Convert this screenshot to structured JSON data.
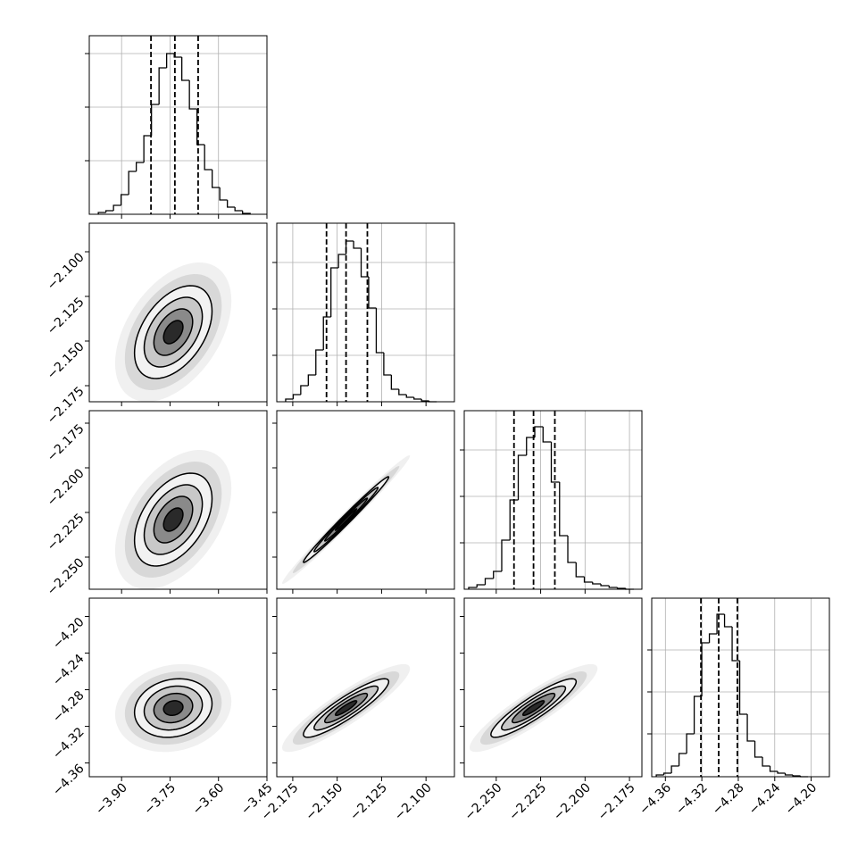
{
  "chart_data": {
    "type": "corner",
    "color": "#000000",
    "grid_color": "#b0b0b0",
    "params": [
      {
        "lim": [
          -4.0,
          -3.45
        ],
        "ticks": [
          {
            "value": -3.9,
            "label": "−3.90"
          },
          {
            "value": -3.75,
            "label": "−3.75"
          },
          {
            "value": -3.6,
            "label": "−3.60"
          },
          {
            "value": -3.45,
            "label": "−3.45"
          }
        ]
      },
      {
        "lim": [
          -2.184,
          -2.084
        ],
        "ticks": [
          {
            "value": -2.175,
            "label": "−2.175"
          },
          {
            "value": -2.15,
            "label": "−2.150"
          },
          {
            "value": -2.125,
            "label": "−2.125"
          },
          {
            "value": -2.1,
            "label": "−2.100"
          }
        ]
      },
      {
        "lim": [
          -2.268,
          -2.168
        ],
        "ticks": [
          {
            "value": -2.25,
            "label": "−2.250"
          },
          {
            "value": -2.225,
            "label": "−2.225"
          },
          {
            "value": -2.2,
            "label": "−2.200"
          },
          {
            "value": -2.175,
            "label": "−2.175"
          }
        ]
      },
      {
        "lim": [
          -4.375,
          -4.18
        ],
        "ticks": [
          {
            "value": -4.36,
            "label": "−4.36"
          },
          {
            "value": -4.32,
            "label": "−4.32"
          },
          {
            "value": -4.28,
            "label": "−4.28"
          },
          {
            "value": -4.24,
            "label": "−4.24"
          },
          {
            "value": -4.2,
            "label": "−4.20"
          }
        ]
      }
    ],
    "histograms": [
      {
        "bins": [
          -3.972,
          -3.9485,
          -3.925,
          -3.9015,
          -3.878,
          -3.8545,
          -3.831,
          -3.8075,
          -3.784,
          -3.7605,
          -3.737,
          -3.7135,
          -3.69,
          -3.6665,
          -3.643,
          -3.6195,
          -3.596,
          -3.5725,
          -3.549,
          -3.5255,
          -3.502
        ],
        "counts": [
          2,
          4,
          10,
          22,
          48,
          58,
          88,
          123,
          164,
          180,
          176,
          150,
          118,
          78,
          50,
          30,
          16,
          8,
          4,
          1
        ],
        "quantiles": [
          -3.809,
          -3.735,
          -3.663
        ],
        "ylim": [
          0,
          200
        ],
        "yticks": [
          60,
          120,
          180
        ]
      },
      {
        "bins": [
          -2.179,
          -2.17475,
          -2.1705,
          -2.16625,
          -2.162,
          -2.15775,
          -2.1535,
          -2.14925,
          -2.145,
          -2.14075,
          -2.1365,
          -2.13225,
          -2.128,
          -2.12375,
          -2.1195,
          -2.11525,
          -2.111,
          -2.10675,
          -2.1025,
          -2.09825,
          -2.094
        ],
        "counts": [
          3,
          8,
          18,
          30,
          58,
          95,
          150,
          165,
          180,
          172,
          140,
          105,
          55,
          30,
          14,
          8,
          5,
          3,
          1,
          0
        ],
        "quantiles": [
          -2.156,
          -2.145,
          -2.133
        ],
        "ylim": [
          0,
          200
        ],
        "yticks": [
          52,
          104,
          156
        ]
      },
      {
        "bins": [
          -2.2655,
          -2.26085,
          -2.2562,
          -2.25155,
          -2.2469,
          -2.24225,
          -2.2376,
          -2.23295,
          -2.2283,
          -2.22365,
          -2.219,
          -2.21435,
          -2.2097,
          -2.20505,
          -2.2004,
          -2.19575,
          -2.1911,
          -2.18645,
          -2.1818,
          -2.17715,
          -2.1725
        ],
        "counts": [
          2,
          5,
          12,
          20,
          55,
          100,
          150,
          170,
          182,
          165,
          120,
          60,
          30,
          14,
          8,
          6,
          4,
          2,
          1,
          0
        ],
        "quantiles": [
          -2.24,
          -2.229,
          -2.217
        ],
        "ylim": [
          0,
          200
        ],
        "yticks": [
          52,
          104,
          156
        ]
      },
      {
        "bins": [
          -4.37,
          -4.36167,
          -4.35335,
          -4.34503,
          -4.3367,
          -4.32838,
          -4.32005,
          -4.31173,
          -4.3034,
          -4.29508,
          -4.28675,
          -4.27843,
          -4.2701,
          -4.26178,
          -4.25345,
          -4.24513,
          -4.2368,
          -4.22848,
          -4.22015,
          -4.21183,
          -4.2035
        ],
        "counts": [
          2,
          4,
          12,
          26,
          48,
          90,
          150,
          160,
          182,
          168,
          130,
          70,
          40,
          22,
          12,
          6,
          4,
          2,
          1,
          0
        ],
        "quantiles": [
          -4.321,
          -4.3015,
          -4.281
        ],
        "ylim": [
          0,
          200
        ],
        "yticks": [
          48,
          95,
          142
        ]
      }
    ],
    "pairs": [
      {
        "mean": [
          -3.74,
          -2.145
        ],
        "std": [
          0.06,
          0.013
        ],
        "corr": 0.45
      },
      {
        "mean": [
          -3.74,
          -2.229
        ],
        "std": [
          0.06,
          0.013
        ],
        "corr": 0.45
      },
      {
        "mean": [
          -2.145,
          -2.229
        ],
        "std": [
          0.012,
          0.012
        ],
        "corr": 0.99
      },
      {
        "mean": [
          -3.74,
          -4.3
        ],
        "std": [
          0.06,
          0.016
        ],
        "corr": 0.15
      },
      {
        "mean": [
          -2.145,
          -4.3
        ],
        "std": [
          0.012,
          0.016
        ],
        "corr": 0.9
      },
      {
        "mean": [
          -2.229,
          -4.3
        ],
        "std": [
          0.012,
          0.016
        ],
        "corr": 0.9
      }
    ]
  }
}
